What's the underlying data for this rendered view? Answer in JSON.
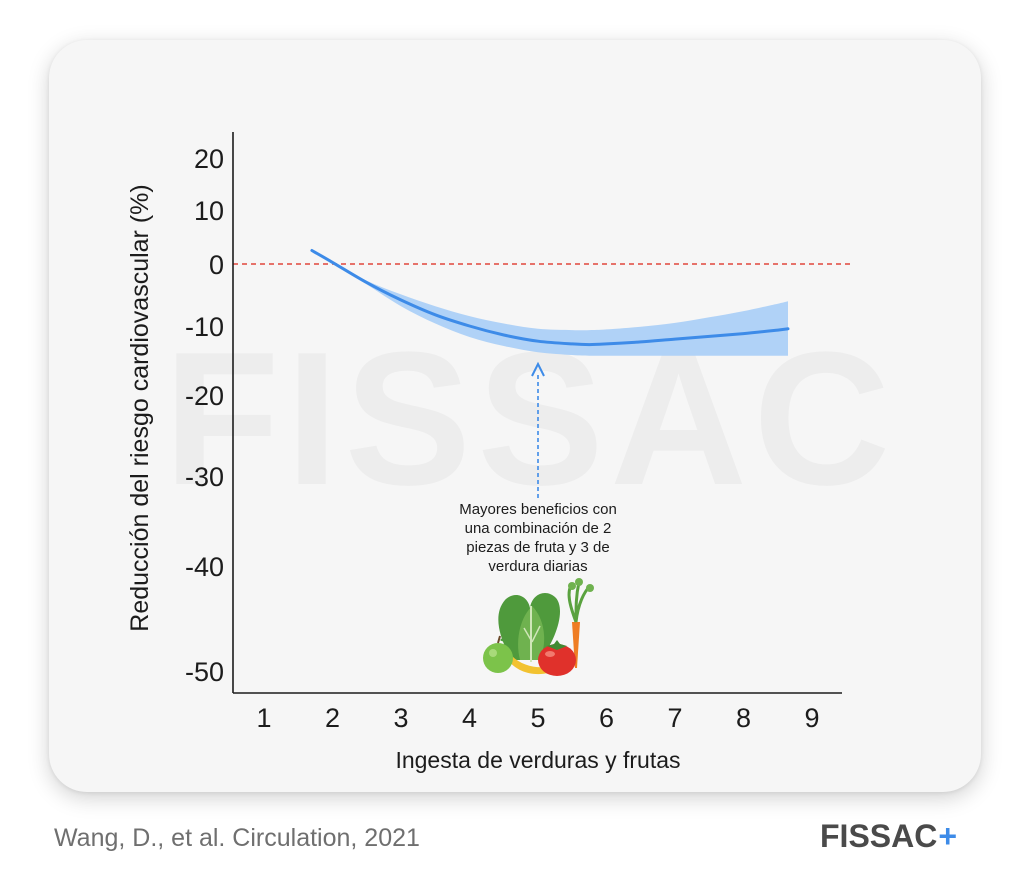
{
  "chart_data": {
    "type": "line",
    "xlabel": "Ingesta de verduras y frutas",
    "ylabel": "Reducción del riesgo cardiovascular (%)",
    "x_ticks": [
      "1",
      "2",
      "3",
      "4",
      "5",
      "6",
      "7",
      "8",
      "9"
    ],
    "highlighted_x_tick": "5",
    "y_ticks": [
      "20",
      "10",
      "0",
      "-10",
      "-20",
      "-30",
      "-40",
      "-50"
    ],
    "xlim": [
      0.5,
      9.5
    ],
    "ylim": [
      -52,
      24
    ],
    "reference_line": {
      "y": 0,
      "style": "dashed",
      "color": "#e0463c"
    },
    "series": [
      {
        "x": [
          1.7,
          2.0,
          2.5,
          3.0,
          3.5,
          4.0,
          4.5,
          5.0,
          5.5,
          5.75,
          6.0,
          6.5,
          7.0,
          7.5,
          8.0,
          8.5,
          8.65
        ],
        "y": [
          2.5,
          0.3,
          -3.0,
          -5.8,
          -8.2,
          -10.0,
          -11.3,
          -12.2,
          -12.6,
          -12.7,
          -12.6,
          -12.3,
          -11.9,
          -11.5,
          -11.1,
          -10.6,
          -10.4
        ],
        "lower": [
          2.5,
          0.3,
          -3.3,
          -6.8,
          -9.6,
          -11.6,
          -12.9,
          -13.8,
          -14.2,
          -14.3,
          -14.3,
          -14.3,
          -14.3,
          -14.3,
          -14.3,
          -14.3,
          -14.3
        ],
        "upper": [
          2.5,
          0.3,
          -2.7,
          -4.9,
          -6.8,
          -8.4,
          -9.6,
          -10.4,
          -10.6,
          -10.6,
          -10.5,
          -10.1,
          -9.5,
          -8.6,
          -7.6,
          -6.4,
          -6.0
        ],
        "color": "#3d8be8",
        "band_color": "#a9cef7"
      }
    ],
    "annotation": {
      "lines": [
        "Mayores beneficios con",
        "una combinación de 2",
        "piezas de fruta y 3 de",
        "verdura diarias"
      ],
      "arrow_x": 5.0
    }
  },
  "watermark": "FISSAC",
  "source": "Wang, D., et al. Circulation, 2021",
  "brand": {
    "name": "FISSAC",
    "plus": "+"
  },
  "icon": "vegetables-and-fruits-icon"
}
